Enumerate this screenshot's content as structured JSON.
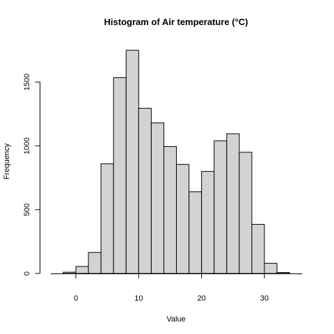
{
  "chart_data": {
    "type": "bar",
    "title": "Histogram of Air temperature (°C)",
    "xlabel": "Value",
    "ylabel": "Frequency",
    "bin_edges": [
      -2,
      0,
      2,
      4,
      6,
      8,
      10,
      12,
      14,
      16,
      18,
      20,
      22,
      24,
      26,
      28,
      30,
      32,
      34
    ],
    "values": [
      10,
      55,
      165,
      860,
      1535,
      1750,
      1295,
      1180,
      995,
      855,
      640,
      800,
      1040,
      1095,
      950,
      385,
      80,
      8
    ],
    "xlim": [
      -4,
      36
    ],
    "ylim": [
      0,
      1750
    ],
    "x_ticks": [
      0,
      10,
      20,
      30
    ],
    "y_ticks": [
      0,
      500,
      1000,
      1500
    ],
    "grid": false
  }
}
